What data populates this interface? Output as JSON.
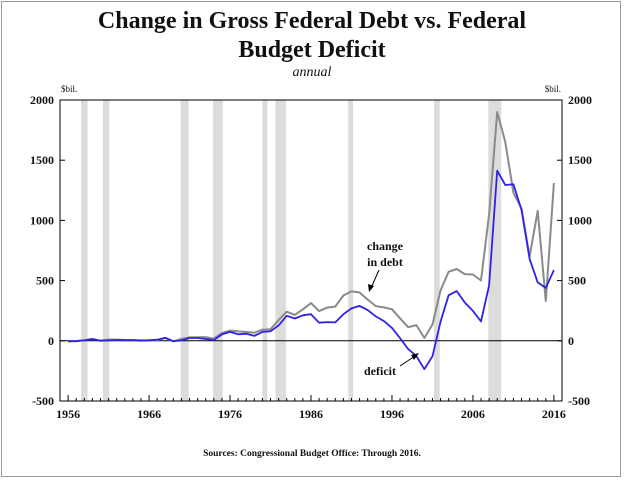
{
  "chart_data": {
    "type": "line",
    "title_line1": "Change in Gross Federal Debt vs. Federal",
    "title_line2": "Budget Deficit",
    "subtitle": "annual",
    "unit_left": "$bil.",
    "unit_right": "$bil.",
    "source": "Sources: Congressional Budget Office:  Through  2016.",
    "xlim": [
      1955,
      2017
    ],
    "ylim": [
      -500,
      2000
    ],
    "x_ticks": [
      1956,
      1966,
      1976,
      1986,
      1996,
      2006,
      2016
    ],
    "y_ticks": [
      -500,
      0,
      500,
      1000,
      1500,
      2000
    ],
    "recessions": [
      [
        1957.6,
        1958.4
      ],
      [
        1960.3,
        1961.1
      ],
      [
        1969.9,
        1970.9
      ],
      [
        1973.9,
        1975.1
      ],
      [
        1980.0,
        1980.6
      ],
      [
        1981.6,
        1982.9
      ],
      [
        1990.6,
        1991.2
      ],
      [
        2001.2,
        2001.9
      ],
      [
        2007.9,
        2009.5
      ]
    ],
    "annotations": [
      {
        "id": "debt",
        "lines": [
          "change",
          "in debt"
        ]
      },
      {
        "id": "deficit",
        "lines": [
          "deficit"
        ]
      }
    ],
    "series": [
      {
        "name": "change in debt",
        "color": "#8a8a8a",
        "x": [
          1956,
          1957,
          1958,
          1959,
          1960,
          1961,
          1962,
          1963,
          1964,
          1965,
          1966,
          1967,
          1968,
          1969,
          1970,
          1971,
          1972,
          1973,
          1974,
          1975,
          1976,
          1977,
          1978,
          1979,
          1980,
          1981,
          1982,
          1983,
          1984,
          1985,
          1986,
          1987,
          1988,
          1989,
          1990,
          1991,
          1992,
          1993,
          1994,
          1995,
          1996,
          1997,
          1998,
          1999,
          2000,
          2001,
          2002,
          2003,
          2004,
          2005,
          2006,
          2007,
          2008,
          2009,
          2010,
          2011,
          2012,
          2013,
          2014,
          2015,
          2016
        ],
        "values": [
          -3,
          -2,
          6,
          16,
          2,
          11,
          10,
          7,
          7,
          3,
          4,
          5,
          24,
          -5,
          17,
          28,
          29,
          31,
          18,
          64,
          85,
          78,
          73,
          67,
          92,
          96,
          172,
          242,
          215,
          262,
          313,
          247,
          276,
          284,
          376,
          411,
          401,
          342,
          288,
          277,
          262,
          186,
          113,
          130,
          23,
          136,
          418,
          573,
          596,
          554,
          551,
          501,
          1050,
          1900,
          1650,
          1230,
          1100,
          700,
          1080,
          330,
          1310
        ]
      },
      {
        "name": "deficit",
        "color": "#2f22e6",
        "x": [
          1956,
          1957,
          1958,
          1959,
          1960,
          1961,
          1962,
          1963,
          1964,
          1965,
          1966,
          1967,
          1968,
          1969,
          1970,
          1971,
          1972,
          1973,
          1974,
          1975,
          1976,
          1977,
          1978,
          1979,
          1980,
          1981,
          1982,
          1983,
          1984,
          1985,
          1986,
          1987,
          1988,
          1989,
          1990,
          1991,
          1992,
          1993,
          1994,
          1995,
          1996,
          1997,
          1998,
          1999,
          2000,
          2001,
          2002,
          2003,
          2004,
          2005,
          2006,
          2007,
          2008,
          2009,
          2010,
          2011,
          2012,
          2013,
          2014,
          2015,
          2016
        ],
        "values": [
          -4,
          -3,
          3,
          13,
          0,
          3,
          7,
          5,
          6,
          1,
          4,
          9,
          25,
          -3,
          3,
          23,
          23,
          15,
          6,
          53,
          74,
          54,
          59,
          41,
          74,
          79,
          128,
          208,
          185,
          212,
          221,
          150,
          155,
          153,
          221,
          269,
          290,
          255,
          203,
          164,
          107,
          22,
          -69,
          -126,
          -236,
          -128,
          158,
          378,
          413,
          318,
          248,
          161,
          459,
          1413,
          1294,
          1300,
          1087,
          680,
          485,
          439,
          587
        ]
      }
    ]
  }
}
